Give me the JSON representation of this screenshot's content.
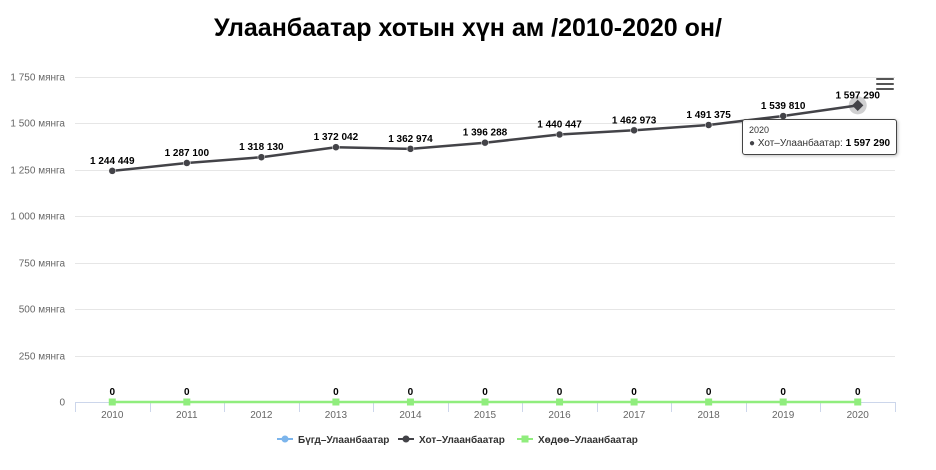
{
  "chart_data": {
    "type": "line",
    "title": "Улаанбаатар хотын хүн ам /2010-2020 он/",
    "categories": [
      "2010",
      "2011",
      "2012",
      "2013",
      "2014",
      "2015",
      "2016",
      "2017",
      "2018",
      "2019",
      "2020"
    ],
    "ylim": [
      0,
      1750000
    ],
    "y_ticks": [
      0,
      250000,
      500000,
      750000,
      1000000,
      1250000,
      1500000,
      1750000
    ],
    "y_tick_labels": [
      "0",
      "250 мянга",
      "500 мянга",
      "750 мянга",
      "1 000 мянга",
      "1 250 мянга",
      "1 500 мянга",
      "1 750 мянга"
    ],
    "grid": true,
    "legend_position": "bottom",
    "series": [
      {
        "name": "Бүгд–Улаанбаатар",
        "color": "#7cb5ec",
        "marker": "circle",
        "values": [
          null,
          null,
          null,
          null,
          null,
          null,
          null,
          null,
          null,
          null,
          null
        ],
        "labels": []
      },
      {
        "name": "Хот–Улаанбаатар",
        "color": "#434348",
        "marker": "circle",
        "values": [
          1244449,
          1287100,
          1318130,
          1372042,
          1362974,
          1396288,
          1440447,
          1462973,
          1491375,
          1539810,
          1597290
        ],
        "labels": [
          "1 244 449",
          "1 287 100",
          "1 318 130",
          "1 372 042",
          "1 362 974",
          "1 396 288",
          "1 440 447",
          "1 462 973",
          "1 491 375",
          "1 539 810",
          "1 597 290"
        ]
      },
      {
        "name": "Хөдөө–Улаанбаатар",
        "color": "#90ed7d",
        "marker": "square",
        "values": [
          0,
          0,
          null,
          0,
          0,
          0,
          0,
          0,
          0,
          0,
          0
        ],
        "labels": [
          "0",
          "0",
          "",
          "0",
          "0",
          "0",
          "0",
          "0",
          "0",
          "0",
          "0"
        ]
      }
    ],
    "tooltip": {
      "year": "2020",
      "series_name": "Хот–Улаанбаатар: ",
      "value": "1 597 290"
    }
  },
  "menu_icon": "hamburger-menu-icon"
}
